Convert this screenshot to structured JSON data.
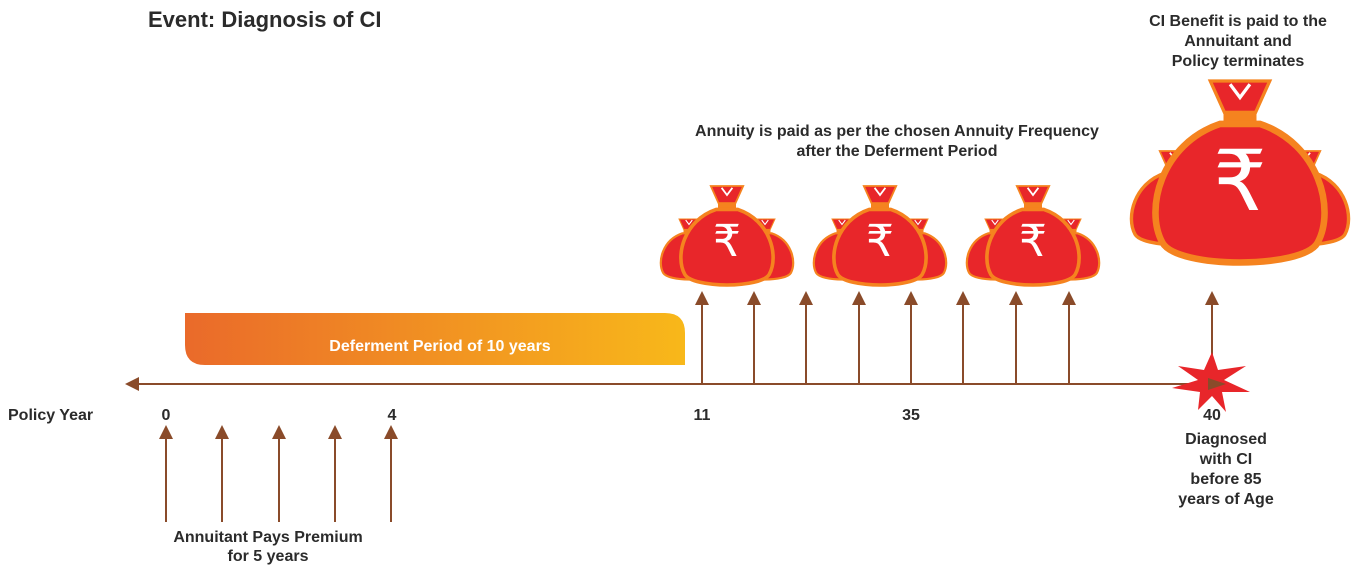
{
  "title": "Event: Diagnosis of CI",
  "benefit_note": [
    "CI Benefit is paid to the",
    "Annuitant and",
    "Policy terminates"
  ],
  "annuity_note": [
    "Annuity is paid as per the chosen Annuity Frequency",
    "after the Deferment Period"
  ],
  "deferment": "Deferment Period of 10 years",
  "axis_label": "Policy Year",
  "ticks": [
    "0",
    "4",
    "11",
    "35",
    "40"
  ],
  "diagnosed_note": [
    "Diagnosed",
    "with CI",
    "before 85",
    "years of Age"
  ],
  "premium_note": [
    "Annuitant Pays Premium",
    "for 5 years"
  ],
  "bag_symbol": "₹"
}
